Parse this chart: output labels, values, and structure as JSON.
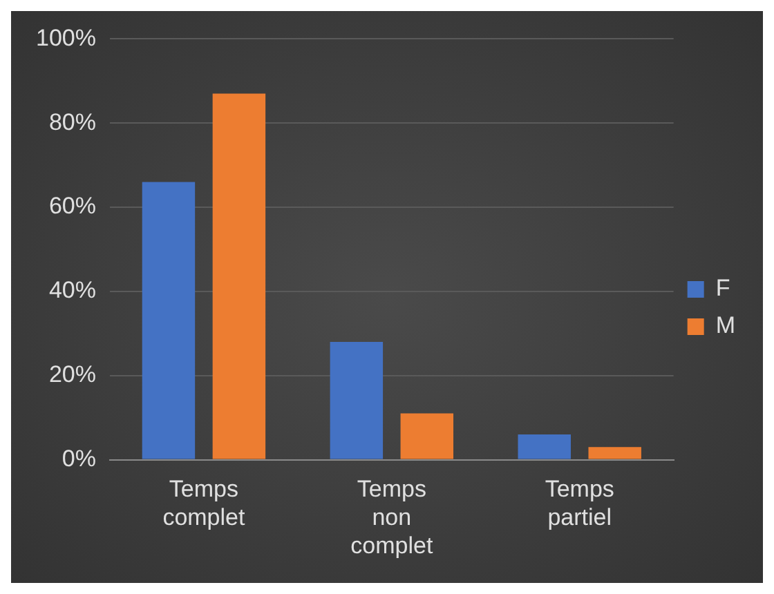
{
  "chart_data": {
    "type": "bar",
    "categories": [
      "Temps complet",
      "Temps non complet",
      "Temps partiel"
    ],
    "series": [
      {
        "name": "F",
        "color": "#4472c4",
        "values": [
          66,
          28,
          6
        ]
      },
      {
        "name": "M",
        "color": "#ed7d31",
        "values": [
          87,
          11,
          3
        ]
      }
    ],
    "ylim": [
      0,
      100
    ],
    "yticks": [
      {
        "value": 0,
        "label": "0%"
      },
      {
        "value": 20,
        "label": "20%"
      },
      {
        "value": 40,
        "label": "40%"
      },
      {
        "value": 60,
        "label": "60%"
      },
      {
        "value": 80,
        "label": "80%"
      },
      {
        "value": 100,
        "label": "100%"
      }
    ],
    "grid": "y",
    "legend": "right"
  }
}
